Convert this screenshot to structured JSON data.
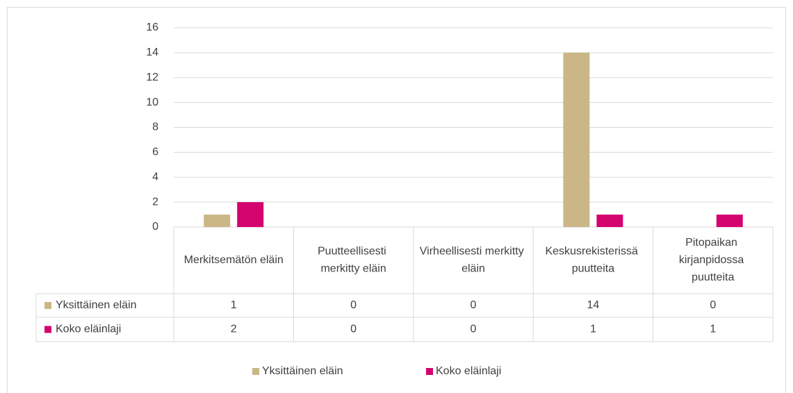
{
  "chart_data": {
    "type": "bar",
    "categories": [
      "Merkitsemätön eläin",
      "Puutteellisesti merkitty eläin",
      "Virheellisesti merkitty eläin",
      "Keskusrekisterissä puutteita",
      "Pitopaikan kirjanpidossa puutteita"
    ],
    "series": [
      {
        "name": "Yksittäinen eläin",
        "color": "#cbb786",
        "values": [
          1,
          0,
          0,
          14,
          0
        ]
      },
      {
        "name": "Koko eläinlaji",
        "color": "#d4046f",
        "values": [
          2,
          0,
          0,
          1,
          1
        ]
      }
    ],
    "ylim": [
      0,
      16
    ],
    "yticks": [
      0,
      2,
      4,
      6,
      8,
      10,
      12,
      14,
      16
    ],
    "grid": true,
    "legend": "bottom"
  }
}
